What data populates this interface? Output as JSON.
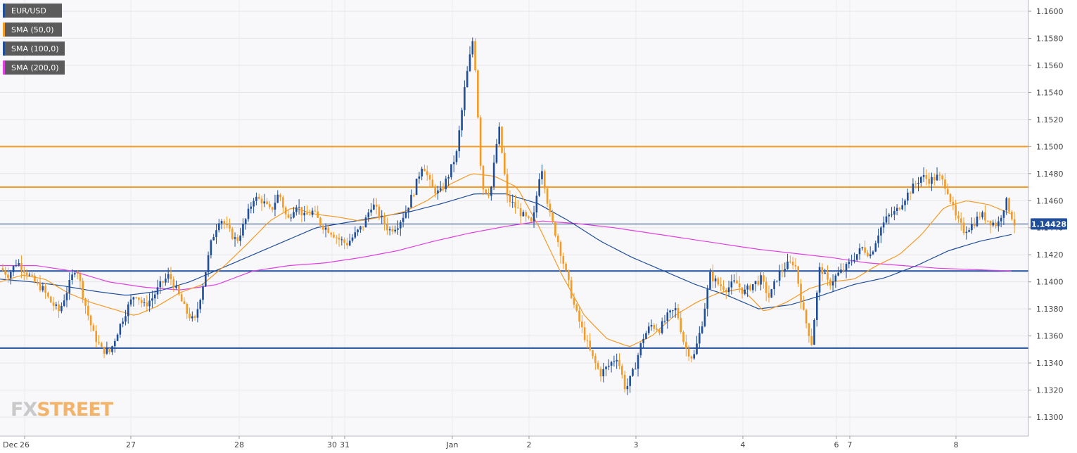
{
  "chart_data": {
    "type": "candlestick",
    "symbol": "EUR/USD",
    "legend": [
      {
        "label": "EUR/USD",
        "color": "#1f4e9a"
      },
      {
        "label": "SMA (50,0)",
        "color": "#f59a23"
      },
      {
        "label": "SMA (100,0)",
        "color": "#1f4e9a"
      },
      {
        "label": "SMA (200,0)",
        "color": "#e040e0"
      }
    ],
    "ylim": [
      1.1295,
      1.1608
    ],
    "y_ticks": [
      "1.1300",
      "1.1320",
      "1.1340",
      "1.1360",
      "1.1380",
      "1.1400",
      "1.1420",
      "1.1440",
      "1.1460",
      "1.1480",
      "1.1500",
      "1.1520",
      "1.1540",
      "1.1560",
      "1.1580",
      "1.1600"
    ],
    "x_ticks": [
      "Dec",
      "26",
      "27",
      "28",
      "30",
      "31",
      "Jan",
      "2",
      "3",
      "4",
      "6",
      "7",
      "8"
    ],
    "last_price": "1.14428",
    "last_value": 1.14428,
    "horizontal_levels": [
      {
        "value": 1.15,
        "color": "#f59a23"
      },
      {
        "value": 1.147,
        "color": "#f59a23"
      },
      {
        "value": 1.1408,
        "color": "#1f4e9a"
      },
      {
        "value": 1.1351,
        "color": "#1f4e9a"
      }
    ],
    "price_path": [
      1.141,
      1.1405,
      1.1415,
      1.1408,
      1.14,
      1.1395,
      1.1385,
      1.1378,
      1.1395,
      1.1412,
      1.1385,
      1.1362,
      1.135,
      1.1348,
      1.1365,
      1.138,
      1.1392,
      1.1382,
      1.1388,
      1.1398,
      1.1405,
      1.1392,
      1.1378,
      1.137,
      1.1398,
      1.143,
      1.1448,
      1.1438,
      1.143,
      1.1445,
      1.1462,
      1.146,
      1.1452,
      1.1466,
      1.1445,
      1.1458,
      1.1448,
      1.1452,
      1.1442,
      1.1438,
      1.1432,
      1.1428,
      1.1435,
      1.1442,
      1.1458,
      1.1448,
      1.1438,
      1.1442,
      1.1452,
      1.1468,
      1.1488,
      1.147,
      1.1465,
      1.1478,
      1.1495,
      1.1545,
      1.1582,
      1.147,
      1.1465,
      1.1515,
      1.1462,
      1.1455,
      1.1448,
      1.1442,
      1.1488,
      1.145,
      1.143,
      1.1405,
      1.138,
      1.1362,
      1.1345,
      1.1332,
      1.1338,
      1.1345,
      1.132,
      1.1335,
      1.1358,
      1.1368,
      1.1365,
      1.1375,
      1.138,
      1.1352,
      1.1343,
      1.1368,
      1.1405,
      1.1398,
      1.1395,
      1.14,
      1.1392,
      1.1398,
      1.1402,
      1.1388,
      1.1405,
      1.1412,
      1.1415,
      1.1378,
      1.1355,
      1.1412,
      1.1398,
      1.1405,
      1.141,
      1.1418,
      1.1425,
      1.142,
      1.1438,
      1.1448,
      1.1452,
      1.1462,
      1.147,
      1.1478,
      1.1475,
      1.1478,
      1.147,
      1.1448,
      1.1438,
      1.1442,
      1.145,
      1.1445,
      1.1442,
      1.146,
      1.1443
    ],
    "sma50_path": [
      1.14,
      1.1405,
      1.1402,
      1.1392,
      1.1385,
      1.138,
      1.1375,
      1.1382,
      1.1392,
      1.1398,
      1.1412,
      1.1428,
      1.1445,
      1.1455,
      1.145,
      1.1448,
      1.1445,
      1.1448,
      1.1452,
      1.146,
      1.1472,
      1.148,
      1.1478,
      1.147,
      1.144,
      1.1405,
      1.1375,
      1.1358,
      1.1352,
      1.136,
      1.1375,
      1.1385,
      1.1392,
      1.1395,
      1.1378,
      1.1385,
      1.1395,
      1.14,
      1.1402,
      1.1412,
      1.142,
      1.1435,
      1.1455,
      1.146,
      1.1457,
      1.145
    ],
    "sma100_path": [
      1.1402,
      1.14,
      1.1397,
      1.1393,
      1.139,
      1.1393,
      1.14,
      1.141,
      1.142,
      1.143,
      1.144,
      1.1444,
      1.1448,
      1.1452,
      1.1458,
      1.1465,
      1.1465,
      1.1458,
      1.1445,
      1.143,
      1.1418,
      1.1408,
      1.1398,
      1.139,
      1.138,
      1.1383,
      1.139,
      1.1398,
      1.1403,
      1.1412,
      1.1423,
      1.143,
      1.1435
    ],
    "sma200_path": [
      1.1412,
      1.1412,
      1.1408,
      1.14,
      1.1396,
      1.1394,
      1.1398,
      1.1408,
      1.1412,
      1.1414,
      1.1418,
      1.1423,
      1.143,
      1.1436,
      1.1441,
      1.1445,
      1.1443,
      1.144,
      1.1436,
      1.1432,
      1.1428,
      1.1424,
      1.1421,
      1.1418,
      1.1414,
      1.1412,
      1.141,
      1.1409,
      1.1408
    ]
  },
  "logo": {
    "fx": "FX",
    "street": "STREET"
  }
}
